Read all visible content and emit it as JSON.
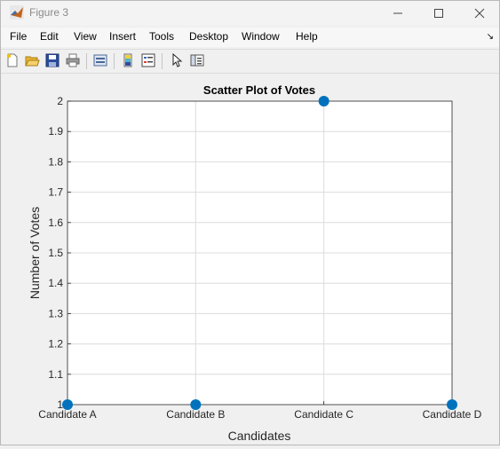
{
  "window": {
    "title": "Figure 3",
    "minimize_icon": "minimize-icon",
    "maximize_icon": "maximize-icon",
    "close_icon": "close-icon"
  },
  "menu": {
    "items": [
      "File",
      "Edit",
      "View",
      "Insert",
      "Tools",
      "Desktop",
      "Window",
      "Help"
    ]
  },
  "toolbar": {
    "icons": [
      "new-figure-icon",
      "open-file-icon",
      "save-icon",
      "print-icon",
      "link-plot-icon",
      "colorbar-icon",
      "legend-icon",
      "pointer-icon",
      "property-inspector-icon"
    ]
  },
  "chart_data": {
    "type": "scatter",
    "title": "Scatter Plot of Votes",
    "xlabel": "Candidates",
    "ylabel": "Number of Votes",
    "categories": [
      "Candidate A",
      "Candidate B",
      "Candidate C",
      "Candidate D"
    ],
    "values": [
      1,
      1,
      2,
      1
    ],
    "ylim": [
      1,
      2
    ],
    "yticks": [
      "1",
      "1.1",
      "1.2",
      "1.3",
      "1.4",
      "1.5",
      "1.6",
      "1.7",
      "1.8",
      "1.9",
      "2"
    ],
    "grid": true,
    "marker_color": "#0072bd"
  }
}
